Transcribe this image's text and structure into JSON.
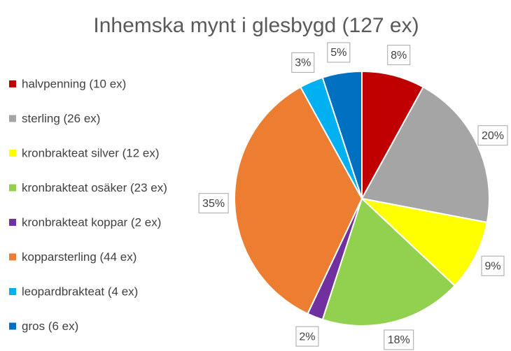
{
  "chart_data": {
    "type": "pie",
    "title": "Inhemska mynt i glesbygd (127 ex)",
    "categories": [
      "halvpenning (10 ex)",
      "sterling (26 ex)",
      "kronbrakteat silver (12 ex)",
      "kronbrakteat osäker (23 ex)",
      "kronbrakteat koppar (2 ex)",
      "kopparsterling (44 ex)",
      "leopardbrakteat (4 ex)",
      "gros (6 ex)"
    ],
    "values": [
      8,
      20,
      9,
      18,
      2,
      35,
      3,
      5
    ],
    "value_labels": [
      "8%",
      "20%",
      "9%",
      "18%",
      "2%",
      "35%",
      "3%",
      "5%"
    ],
    "colors": [
      "#c00000",
      "#a5a5a5",
      "#ffff00",
      "#92d050",
      "#7030a0",
      "#ed7d31",
      "#00b0f0",
      "#0070c0"
    ],
    "legend": "left"
  }
}
